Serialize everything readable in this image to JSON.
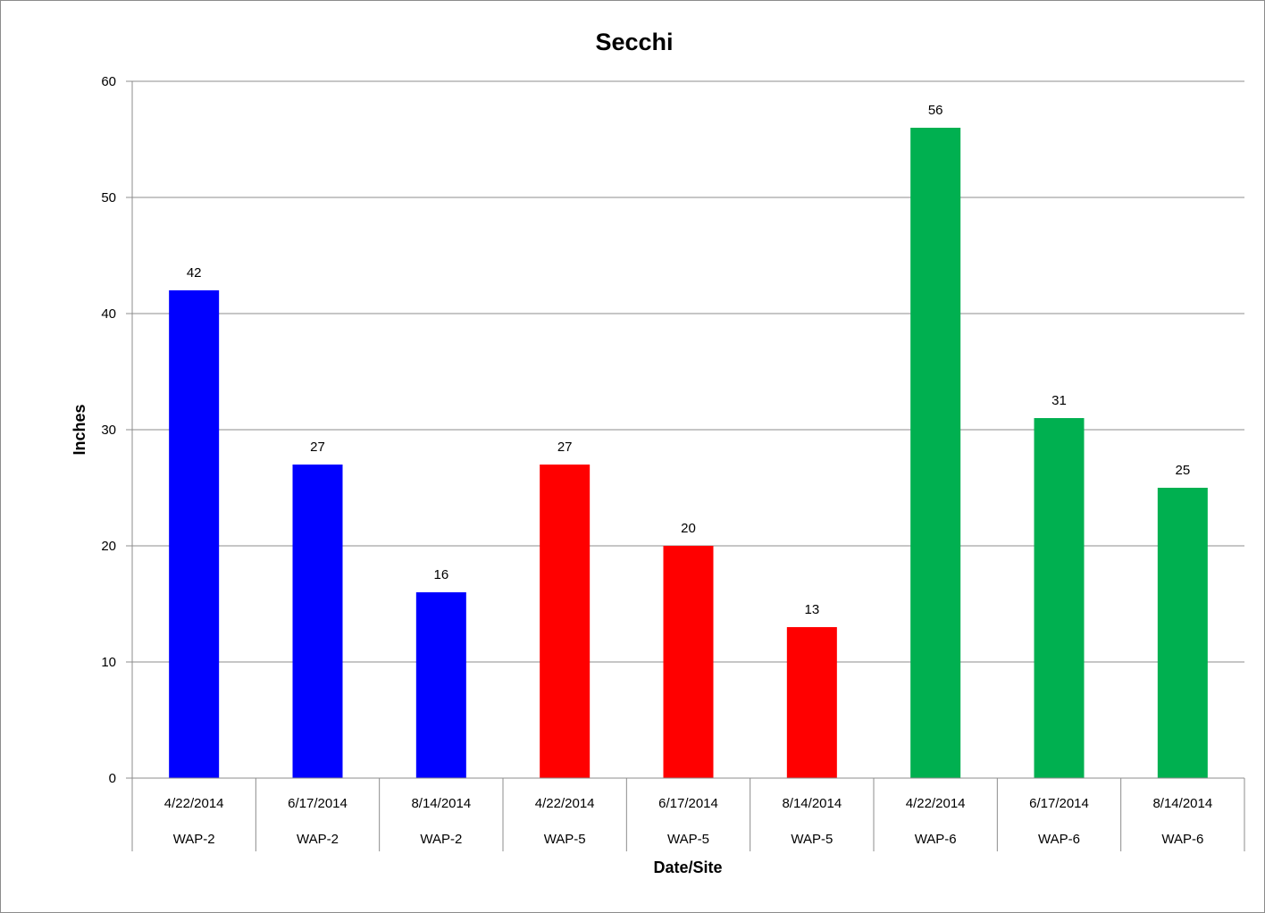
{
  "chart_data": {
    "type": "bar",
    "title": "Secchi",
    "xlabel": "Date/Site",
    "ylabel": "Inches",
    "ylim": [
      0,
      60
    ],
    "yticks": [
      0,
      10,
      20,
      30,
      40,
      50,
      60
    ],
    "grid": true,
    "legend": "none",
    "categories": [
      {
        "date": "4/22/2014",
        "site": "WAP-2"
      },
      {
        "date": "6/17/2014",
        "site": "WAP-2"
      },
      {
        "date": "8/14/2014",
        "site": "WAP-2"
      },
      {
        "date": "4/22/2014",
        "site": "WAP-5"
      },
      {
        "date": "6/17/2014",
        "site": "WAP-5"
      },
      {
        "date": "8/14/2014",
        "site": "WAP-5"
      },
      {
        "date": "4/22/2014",
        "site": "WAP-6"
      },
      {
        "date": "6/17/2014",
        "site": "WAP-6"
      },
      {
        "date": "8/14/2014",
        "site": "WAP-6"
      }
    ],
    "values": [
      42,
      27,
      16,
      27,
      20,
      13,
      56,
      31,
      25
    ],
    "colors": [
      "#0000ff",
      "#0000ff",
      "#0000ff",
      "#ff0000",
      "#ff0000",
      "#ff0000",
      "#00b050",
      "#00b050",
      "#00b050"
    ]
  }
}
